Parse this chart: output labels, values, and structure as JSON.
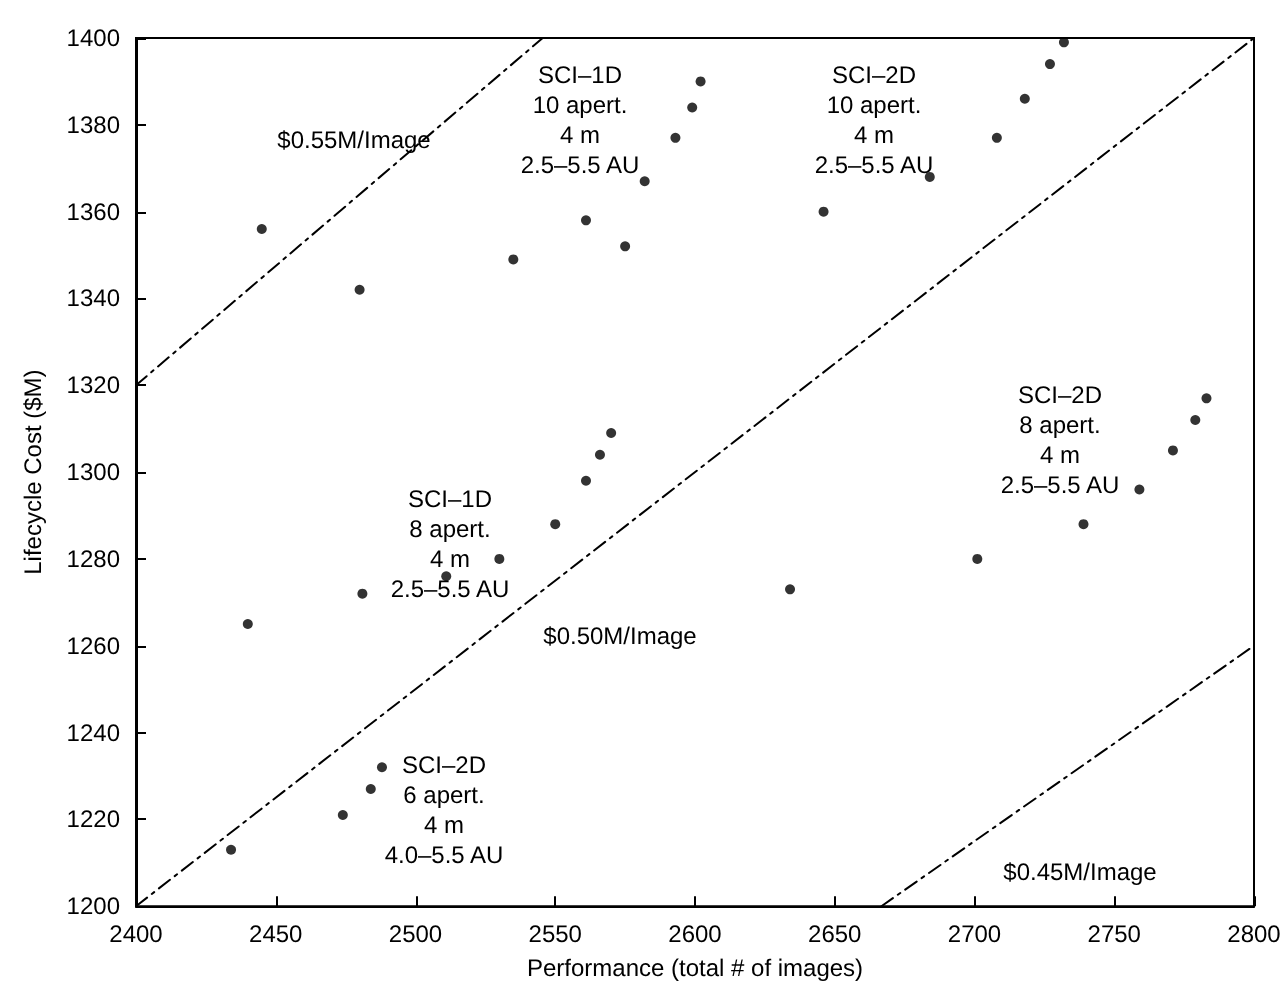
{
  "chart_data": {
    "type": "scatter",
    "xlabel": "Performance (total # of images)",
    "ylabel": "Lifecycle Cost ($M)",
    "xlim": [
      2400,
      2800
    ],
    "xticks": [
      2400,
      2450,
      2500,
      2550,
      2600,
      2650,
      2700,
      2750,
      2800
    ],
    "ylim": [
      1200,
      1400
    ],
    "yticks": [
      1200,
      1220,
      1240,
      1260,
      1280,
      1300,
      1320,
      1340,
      1360,
      1380,
      1400
    ],
    "grid": false,
    "marker": "circle",
    "series": [
      {
        "color": "#000000",
        "x": [
          2440,
          2481,
          2511,
          2530,
          2550,
          2561,
          2566,
          2570,
          2434,
          2474,
          2484,
          2488,
          2445,
          2480,
          2535,
          2561,
          2575,
          2582,
          2593,
          2599,
          2602,
          2646,
          2684,
          2708,
          2718,
          2727,
          2732,
          2634,
          2701,
          2739,
          2759,
          2771,
          2779,
          2783
        ],
        "values": [
          1265,
          1272,
          1276,
          1280,
          1288,
          1298,
          1304,
          1309,
          1213,
          1221,
          1227,
          1232,
          1356,
          1342,
          1349,
          1358,
          1352,
          1367,
          1377,
          1384,
          1390,
          1360,
          1368,
          1377,
          1386,
          1394,
          1399,
          1273,
          1280,
          1288,
          1296,
          1305,
          1312,
          1317
        ]
      },
      {
        "type": "line",
        "color": "#000000",
        "line_style": "dashed",
        "marker": "none",
        "x": [
          2400,
          2545.5
        ],
        "values": [
          1320,
          1400
        ]
      },
      {
        "type": "line",
        "color": "#000000",
        "line_style": "dashed",
        "marker": "none",
        "x": [
          2400,
          2800
        ],
        "values": [
          1200,
          1400
        ]
      },
      {
        "type": "line",
        "color": "#000000",
        "line_style": "dashed",
        "marker": "none",
        "x": [
          2666.7,
          2800
        ],
        "values": [
          1200,
          1260
        ]
      }
    ],
    "annotations": [
      "$0.55M/Image",
      "$0.50M/Image",
      "$0.45M/Image",
      "SCI–1D\n10 apert.\n4 m\n2.5–5.5 AU",
      "SCI–2D\n10 apert.\n4 m\n2.5–5.5 AU",
      "SCI–1D\n8 apert.\n4 m\n2.5–5.5 AU",
      "SCI–2D\n8 apert.\n4 m\n2.5–5.5 AU",
      "SCI–2D\n6 apert.\n4 m\n4.0–5.5 AU"
    ]
  }
}
